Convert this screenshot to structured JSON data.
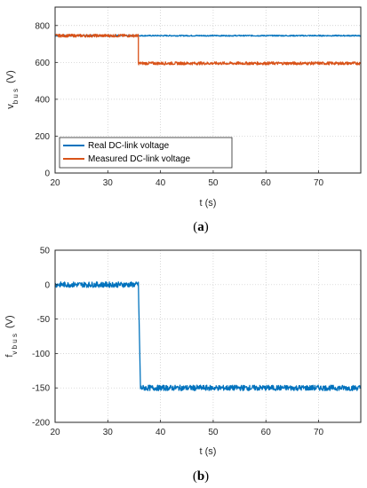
{
  "chart_data": [
    {
      "id": "a",
      "type": "line",
      "panel_letter": "a",
      "xlabel": "t (s)",
      "ylabel_main": "v",
      "ylabel_sub": "b u s",
      "ylabel_unit": "(V)",
      "xlim": [
        20,
        78
      ],
      "ylim": [
        0,
        900
      ],
      "xticks": [
        20,
        30,
        40,
        50,
        60,
        70
      ],
      "yticks": [
        0,
        200,
        400,
        600,
        800
      ],
      "grid": true,
      "legend_position": "lower-left",
      "series": [
        {
          "name": "Real DC-link voltage",
          "color": "#0072BD",
          "step": true,
          "x": [
            20,
            35.8,
            35.8,
            78
          ],
          "y": [
            745,
            745,
            745,
            745
          ],
          "noise": 3
        },
        {
          "name": "Measured DC-link voltage",
          "color": "#D95319",
          "step": true,
          "x": [
            20,
            35.8,
            35.8,
            78
          ],
          "y": [
            745,
            745,
            595,
            595
          ],
          "noise": 8
        }
      ]
    },
    {
      "id": "b",
      "type": "line",
      "panel_letter": "b",
      "xlabel": "t (s)",
      "ylabel_main": "f",
      "ylabel_sub": "v b u s",
      "ylabel_unit": "(V)",
      "xlim": [
        20,
        78
      ],
      "ylim": [
        -200,
        50
      ],
      "xticks": [
        20,
        30,
        40,
        50,
        60,
        70
      ],
      "yticks": [
        -200,
        -150,
        -100,
        -50,
        0,
        50
      ],
      "grid": true,
      "series": [
        {
          "color": "#0072BD",
          "step": true,
          "x": [
            20,
            35.8,
            36.2,
            78
          ],
          "y": [
            0,
            0,
            -150,
            -150
          ],
          "noise": 4
        }
      ]
    }
  ]
}
